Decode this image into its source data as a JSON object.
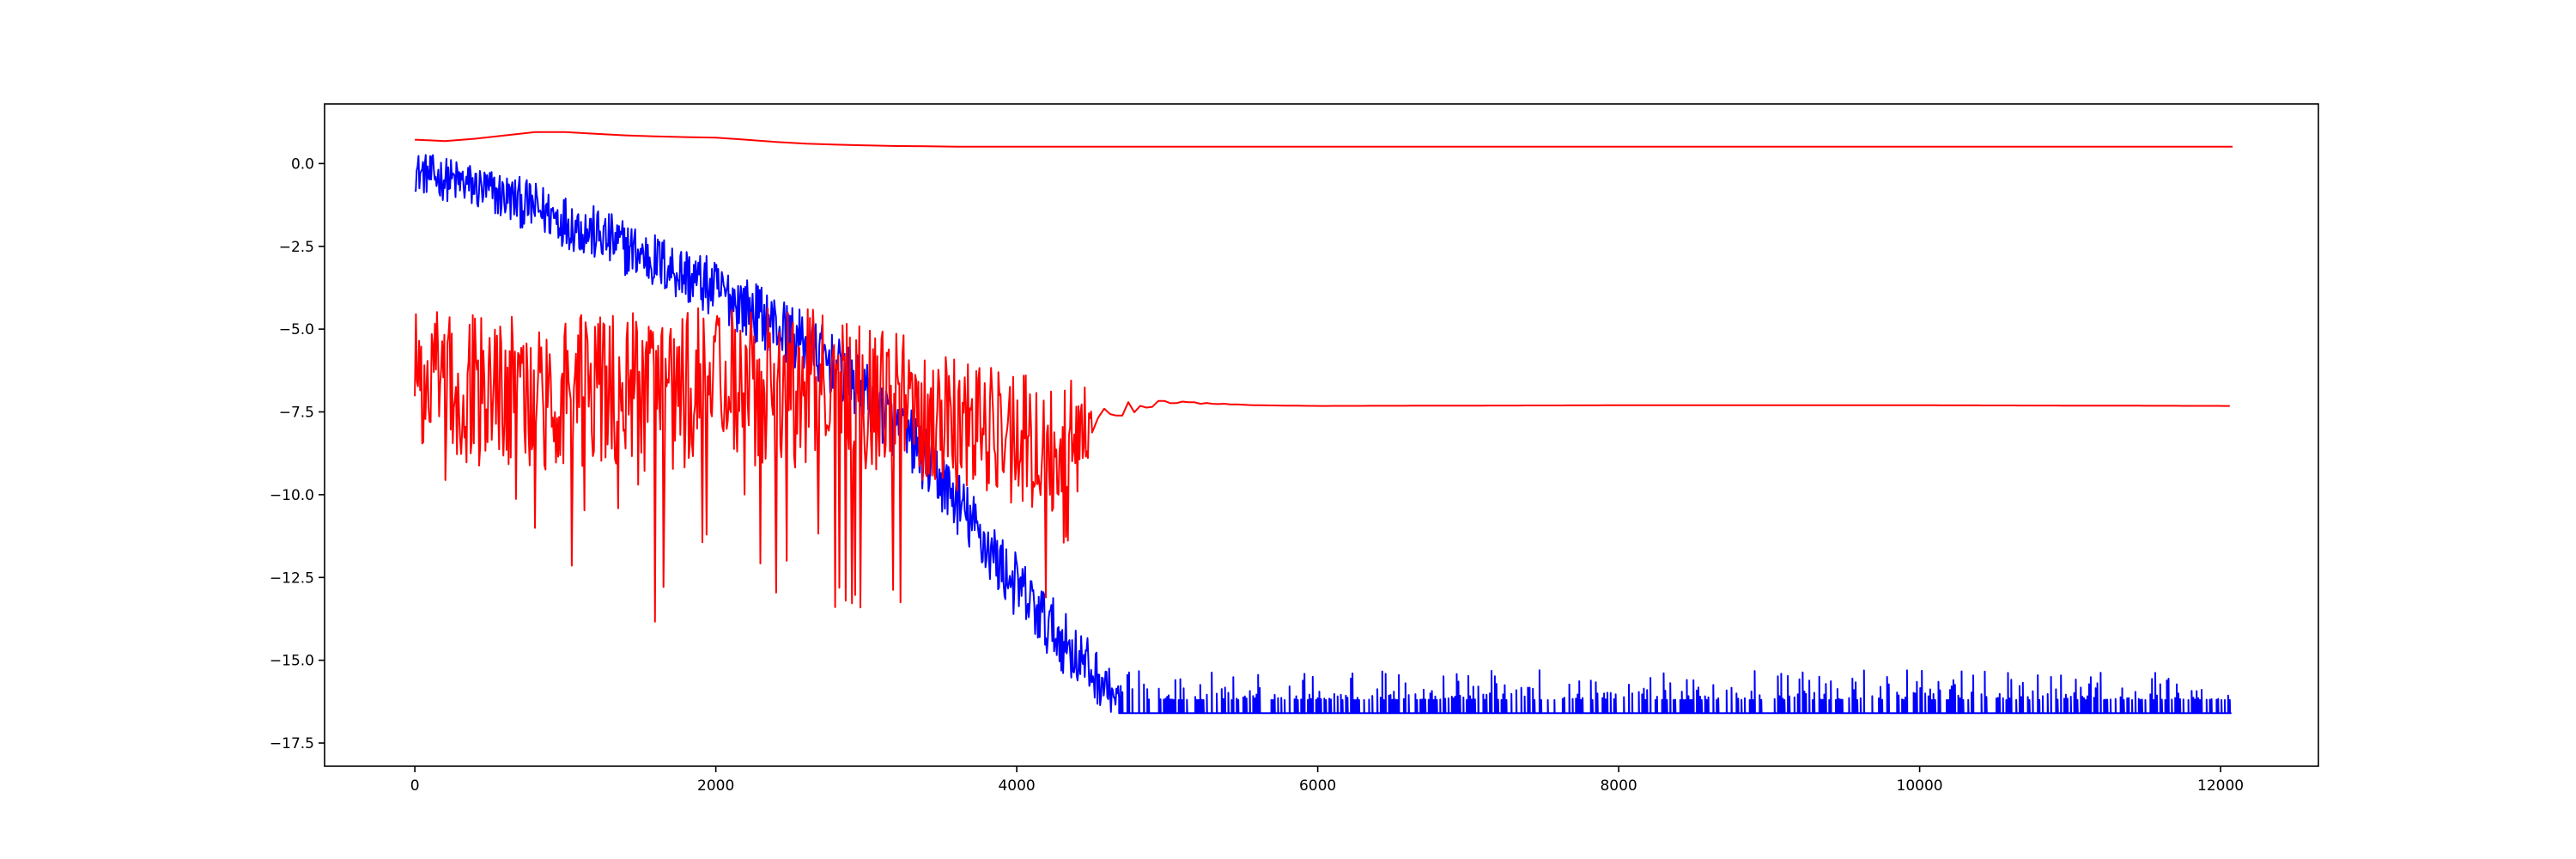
{
  "chart_data": {
    "type": "line",
    "title": "",
    "xlabel": "",
    "ylabel": "",
    "xlim": [
      -600,
      12650
    ],
    "ylim": [
      -18.2,
      1.8
    ],
    "grid": false,
    "legend": "none",
    "xticks": [
      0,
      2000,
      4000,
      6000,
      8000,
      10000,
      12000
    ],
    "xtick_labels": [
      "0",
      "2000",
      "4000",
      "6000",
      "8000",
      "10000",
      "12000"
    ],
    "yticks": [
      0.0,
      -2.5,
      -5.0,
      -7.5,
      -10.0,
      -12.5,
      -15.0,
      -17.5
    ],
    "ytick_labels": [
      "0.0",
      "−2.5",
      "−5.0",
      "−7.5",
      "−10.0",
      "−12.5",
      "−15.0",
      "−17.5"
    ],
    "series": [
      {
        "color": "#ff0000",
        "style": "smooth",
        "x": [
          0,
          200,
          400,
          600,
          800,
          1000,
          1200,
          1400,
          1600,
          1800,
          2000,
          2200,
          2400,
          2600,
          2800,
          3000,
          3200,
          3400,
          3600,
          3800,
          4000,
          4500,
          5000,
          6000,
          8000,
          10000,
          12080
        ],
        "y": [
          0.72,
          0.68,
          0.75,
          0.85,
          0.95,
          0.95,
          0.9,
          0.85,
          0.82,
          0.8,
          0.78,
          0.72,
          0.65,
          0.6,
          0.57,
          0.55,
          0.53,
          0.52,
          0.51,
          0.51,
          0.51,
          0.51,
          0.51,
          0.51,
          0.51,
          0.51,
          0.51
        ]
      },
      {
        "color": "#0000ff",
        "style": "noisy",
        "x": [
          0,
          300,
          600,
          900,
          1200,
          1500,
          1800,
          2100,
          2400,
          2700,
          3000,
          3300,
          3600,
          3900,
          4200,
          4500,
          4680
        ],
        "y": [
          0.0,
          -0.3,
          -0.7,
          -1.2,
          -1.8,
          -2.4,
          -3.0,
          -3.7,
          -4.5,
          -5.4,
          -6.6,
          -8.0,
          -9.8,
          -11.8,
          -13.5,
          -15.0,
          -16.0
        ],
        "noise_amplitude": [
          1.2,
          1.4,
          1.5,
          1.6,
          1.7,
          1.7,
          1.8,
          1.8,
          1.9,
          1.9,
          2.0,
          2.0,
          2.0,
          2.0,
          2.0,
          1.8,
          1.0
        ],
        "floor": -16.6,
        "floor_x_range": [
          4300,
          12080
        ],
        "spike_top": [
          -16.2,
          -15.3
        ]
      },
      {
        "color": "#ff0000",
        "style": "noisy",
        "x": [
          0,
          500,
          1000,
          1500,
          2000,
          2500,
          3000,
          3500,
          3800,
          4000,
          4200,
          4400,
          4600,
          4800,
          5000,
          5300,
          5600,
          6000,
          8000,
          10000,
          12080
        ],
        "y": [
          -6.8,
          -6.8,
          -6.9,
          -6.9,
          -6.8,
          -6.6,
          -7.0,
          -7.6,
          -7.8,
          -8.3,
          -8.6,
          -8.0,
          -7.6,
          -7.3,
          -7.2,
          -7.25,
          -7.3,
          -7.32,
          -7.3,
          -7.3,
          -7.32
        ],
        "noise_amplitude": [
          3.0,
          3.0,
          3.0,
          3.0,
          3.2,
          3.0,
          2.8,
          2.6,
          2.5,
          2.6,
          3.0,
          1.8,
          0.6,
          0.2,
          0.05,
          0.02,
          0.0,
          0.0,
          0.0,
          0.0,
          0.0
        ],
        "noise_x_end": 4500
      }
    ]
  }
}
